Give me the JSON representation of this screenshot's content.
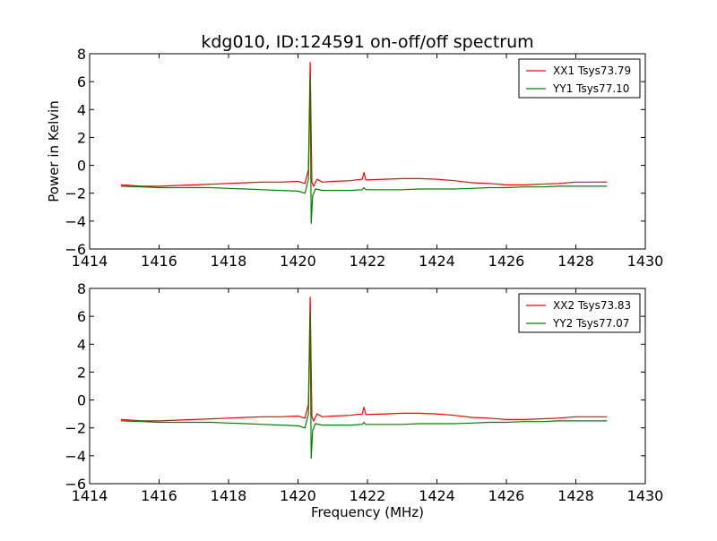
{
  "figure": {
    "title": "kdg010, ID:124591 on-off/off spectrum",
    "ylabel": "Power in Kelvin",
    "xlabel": "Frequency (MHz)"
  },
  "chart_data": [
    {
      "type": "line",
      "title": "kdg010, ID:124591 on-off/off spectrum",
      "xlabel": "",
      "ylabel": "Power in Kelvin",
      "xlim": [
        1414,
        1430
      ],
      "ylim": [
        -6,
        8
      ],
      "xticks": [
        1414,
        1416,
        1418,
        1420,
        1422,
        1424,
        1426,
        1428,
        1430
      ],
      "yticks": [
        -6,
        -4,
        -2,
        0,
        2,
        4,
        6,
        8
      ],
      "grid": false,
      "legend_position": "top-right",
      "series": [
        {
          "name": "XX1 Tsys73.79",
          "color": "#ff0000",
          "x": [
            1414.9,
            1415.5,
            1416.0,
            1416.5,
            1417.0,
            1417.5,
            1418.0,
            1418.5,
            1419.0,
            1419.5,
            1420.0,
            1420.2,
            1420.3,
            1420.35,
            1420.4,
            1420.45,
            1420.55,
            1420.7,
            1421.0,
            1421.5,
            1421.85,
            1421.9,
            1421.95,
            1422.5,
            1423.0,
            1423.5,
            1424.0,
            1424.5,
            1425.0,
            1425.5,
            1426.0,
            1426.5,
            1427.0,
            1427.5,
            1428.0,
            1428.5,
            1428.9
          ],
          "y": [
            -1.4,
            -1.5,
            -1.5,
            -1.45,
            -1.4,
            -1.35,
            -1.3,
            -1.25,
            -1.2,
            -1.2,
            -1.15,
            -1.3,
            -0.3,
            7.4,
            -1.2,
            -1.5,
            -1.0,
            -1.2,
            -1.15,
            -1.1,
            -1.0,
            -0.5,
            -1.05,
            -1.0,
            -0.95,
            -0.95,
            -1.0,
            -1.1,
            -1.25,
            -1.3,
            -1.4,
            -1.4,
            -1.35,
            -1.3,
            -1.2,
            -1.2,
            -1.2
          ]
        },
        {
          "name": "YY1 Tsys77.10",
          "color": "#008000",
          "x": [
            1414.9,
            1415.5,
            1416.0,
            1416.5,
            1417.0,
            1417.5,
            1418.0,
            1418.5,
            1419.0,
            1419.5,
            1420.0,
            1420.2,
            1420.3,
            1420.35,
            1420.38,
            1420.42,
            1420.5,
            1420.7,
            1421.0,
            1421.5,
            1421.85,
            1421.9,
            1421.95,
            1422.5,
            1423.0,
            1423.5,
            1424.0,
            1424.5,
            1425.0,
            1425.5,
            1426.0,
            1426.5,
            1427.0,
            1427.5,
            1428.0,
            1428.5,
            1428.9
          ],
          "y": [
            -1.5,
            -1.55,
            -1.6,
            -1.6,
            -1.6,
            -1.6,
            -1.65,
            -1.7,
            -1.75,
            -1.8,
            -1.85,
            -2.0,
            -1.0,
            6.3,
            -4.2,
            -2.2,
            -1.7,
            -1.8,
            -1.8,
            -1.8,
            -1.75,
            -1.6,
            -1.75,
            -1.75,
            -1.75,
            -1.7,
            -1.7,
            -1.7,
            -1.65,
            -1.6,
            -1.6,
            -1.55,
            -1.55,
            -1.5,
            -1.5,
            -1.5,
            -1.5
          ]
        }
      ]
    },
    {
      "type": "line",
      "title": "",
      "xlabel": "Frequency (MHz)",
      "ylabel": "",
      "xlim": [
        1414,
        1430
      ],
      "ylim": [
        -6,
        8
      ],
      "xticks": [
        1414,
        1416,
        1418,
        1420,
        1422,
        1424,
        1426,
        1428,
        1430
      ],
      "yticks": [
        -6,
        -4,
        -2,
        0,
        2,
        4,
        6,
        8
      ],
      "grid": false,
      "legend_position": "top-right",
      "series": [
        {
          "name": "XX2 Tsys73.83",
          "color": "#ff0000",
          "x": [
            1414.9,
            1415.5,
            1416.0,
            1416.5,
            1417.0,
            1417.5,
            1418.0,
            1418.5,
            1419.0,
            1419.5,
            1420.0,
            1420.2,
            1420.3,
            1420.35,
            1420.4,
            1420.45,
            1420.55,
            1420.7,
            1421.0,
            1421.5,
            1421.85,
            1421.9,
            1421.95,
            1422.5,
            1423.0,
            1423.5,
            1424.0,
            1424.5,
            1425.0,
            1425.5,
            1426.0,
            1426.5,
            1427.0,
            1427.5,
            1428.0,
            1428.5,
            1428.9
          ],
          "y": [
            -1.4,
            -1.5,
            -1.5,
            -1.45,
            -1.4,
            -1.35,
            -1.3,
            -1.25,
            -1.2,
            -1.2,
            -1.15,
            -1.3,
            -0.3,
            7.4,
            -1.2,
            -1.5,
            -1.0,
            -1.2,
            -1.15,
            -1.1,
            -1.0,
            -0.5,
            -1.05,
            -1.0,
            -0.95,
            -0.95,
            -1.0,
            -1.1,
            -1.25,
            -1.3,
            -1.4,
            -1.4,
            -1.35,
            -1.3,
            -1.2,
            -1.2,
            -1.2
          ]
        },
        {
          "name": "YY2 Tsys77.07",
          "color": "#008000",
          "x": [
            1414.9,
            1415.5,
            1416.0,
            1416.5,
            1417.0,
            1417.5,
            1418.0,
            1418.5,
            1419.0,
            1419.5,
            1420.0,
            1420.2,
            1420.3,
            1420.35,
            1420.38,
            1420.42,
            1420.5,
            1420.7,
            1421.0,
            1421.5,
            1421.85,
            1421.9,
            1421.95,
            1422.5,
            1423.0,
            1423.5,
            1424.0,
            1424.5,
            1425.0,
            1425.5,
            1426.0,
            1426.5,
            1427.0,
            1427.5,
            1428.0,
            1428.5,
            1428.9
          ],
          "y": [
            -1.5,
            -1.55,
            -1.6,
            -1.6,
            -1.6,
            -1.6,
            -1.65,
            -1.7,
            -1.75,
            -1.8,
            -1.85,
            -2.0,
            -1.0,
            6.3,
            -4.2,
            -2.2,
            -1.7,
            -1.8,
            -1.8,
            -1.8,
            -1.75,
            -1.6,
            -1.75,
            -1.75,
            -1.75,
            -1.7,
            -1.7,
            -1.7,
            -1.65,
            -1.6,
            -1.6,
            -1.55,
            -1.55,
            -1.5,
            -1.5,
            -1.5,
            -1.5
          ]
        }
      ]
    }
  ]
}
